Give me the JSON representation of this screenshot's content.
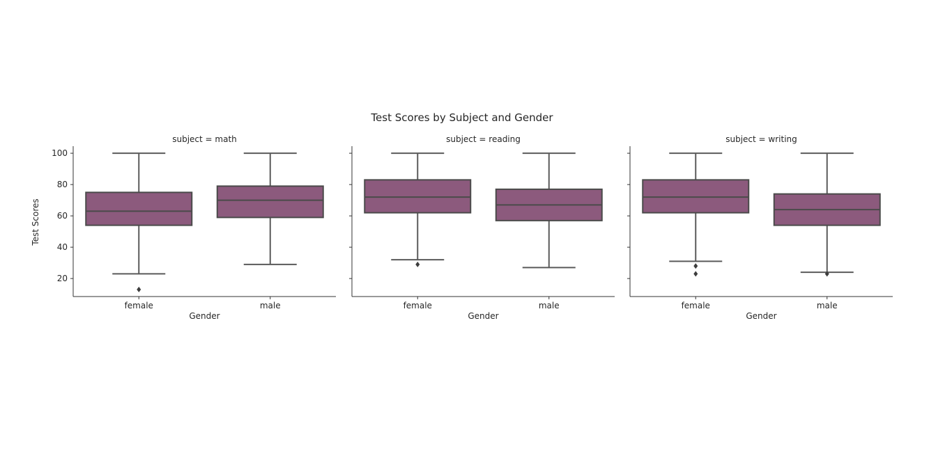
{
  "chart_data": {
    "type": "boxplot",
    "title": "Test Scores by Subject and Gender",
    "ylabel": "Test Scores",
    "xlabel": "Gender",
    "ylim": [
      8.5,
      104.5
    ],
    "yticks": [
      20,
      40,
      60,
      80,
      100
    ],
    "categories": [
      "female",
      "male"
    ],
    "box_color": "#8c5a7d",
    "line_color": "#5a5a5a",
    "panels": [
      {
        "title": "subject = math",
        "boxes": [
          {
            "category": "female",
            "whisker_low": 23,
            "q1": 54,
            "median": 63,
            "q3": 75,
            "whisker_high": 100,
            "outliers": [
              13
            ]
          },
          {
            "category": "male",
            "whisker_low": 29,
            "q1": 59,
            "median": 70,
            "q3": 79,
            "whisker_high": 100,
            "outliers": []
          }
        ]
      },
      {
        "title": "subject = reading",
        "boxes": [
          {
            "category": "female",
            "whisker_low": 32,
            "q1": 62,
            "median": 72,
            "q3": 83,
            "whisker_high": 100,
            "outliers": [
              29
            ]
          },
          {
            "category": "male",
            "whisker_low": 27,
            "q1": 57,
            "median": 67,
            "q3": 77,
            "whisker_high": 100,
            "outliers": []
          }
        ]
      },
      {
        "title": "subject = writing",
        "boxes": [
          {
            "category": "female",
            "whisker_low": 31,
            "q1": 62,
            "median": 72,
            "q3": 83,
            "whisker_high": 100,
            "outliers": [
              28,
              23
            ]
          },
          {
            "category": "male",
            "whisker_low": 24,
            "q1": 54,
            "median": 64,
            "q3": 74,
            "whisker_high": 100,
            "outliers": [
              23
            ]
          }
        ]
      }
    ]
  }
}
